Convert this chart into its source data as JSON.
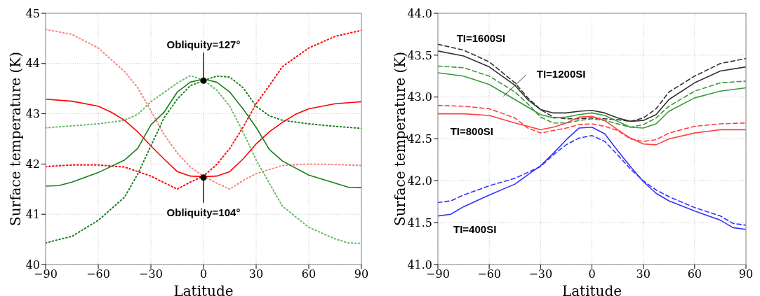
{
  "chart_data": [
    {
      "type": "line",
      "xlabel": "Latitude",
      "ylabel": "Surface temperature (K)",
      "xlim": [
        -90,
        90
      ],
      "xticks": [
        {
          "value": -90,
          "label": "−90"
        },
        {
          "value": -60,
          "label": "−60"
        },
        {
          "value": -30,
          "label": "−30"
        },
        0,
        30,
        60,
        90
      ],
      "ylim": [
        40,
        45
      ],
      "yticks": [
        40,
        41,
        42,
        43,
        44,
        45
      ],
      "grid": true,
      "annotations": [
        {
          "text": "Obliquity=127°",
          "x": 0,
          "y": 43.66
        },
        {
          "text": "Obliquity=104°",
          "x": 0,
          "y": 41.73
        }
      ],
      "series": [
        {
          "color": "#ff8080",
          "line_style": "dotted",
          "x": [
            -90,
            -75,
            -60,
            -45,
            -37.5,
            -30,
            -22.5,
            -15,
            -7.5,
            0,
            7.5,
            15,
            22.5,
            30,
            45,
            60,
            75,
            90
          ],
          "values": [
            44.68,
            44.58,
            44.31,
            43.84,
            43.52,
            43.06,
            42.59,
            42.22,
            41.94,
            41.76,
            41.62,
            41.5,
            41.67,
            41.81,
            41.97,
            42.0,
            41.99,
            41.97
          ]
        },
        {
          "color": "#ff0000",
          "line_style": "dotted",
          "x": [
            -90,
            -75,
            -60,
            -45,
            -30,
            -15,
            -7.5,
            0,
            7.5,
            15,
            22.5,
            30,
            37.5,
            45,
            60,
            75,
            90
          ],
          "values": [
            41.95,
            41.98,
            41.98,
            41.94,
            41.76,
            41.5,
            41.64,
            41.76,
            41.99,
            42.31,
            42.73,
            43.2,
            43.56,
            43.94,
            44.31,
            44.54,
            44.66
          ]
        },
        {
          "color": "#66bb66",
          "line_style": "dotted",
          "x": [
            -90,
            -60,
            -45,
            -37.5,
            -30,
            -15,
            -7.5,
            0,
            7.5,
            15,
            22.5,
            30,
            37.5,
            45,
            60,
            75,
            82.5,
            90
          ],
          "values": [
            42.72,
            42.8,
            42.87,
            42.99,
            43.24,
            43.61,
            43.76,
            43.67,
            43.47,
            43.15,
            42.64,
            42.08,
            41.62,
            41.16,
            40.74,
            40.51,
            40.43,
            40.42
          ]
        },
        {
          "color": "#1a7f1a",
          "line_style": "dotted",
          "x": [
            -90,
            -75,
            -60,
            -45,
            -37.5,
            -30,
            -22.5,
            -15,
            -7.5,
            0,
            7.5,
            15,
            22.5,
            30,
            37.5,
            45,
            60,
            75,
            90
          ],
          "values": [
            40.43,
            40.56,
            40.88,
            41.34,
            41.8,
            42.36,
            42.92,
            43.29,
            43.56,
            43.66,
            43.75,
            43.73,
            43.52,
            43.15,
            42.96,
            42.87,
            42.8,
            42.75,
            42.71
          ]
        },
        {
          "color": "#ff0000",
          "line_style": "solid",
          "x": [
            -90,
            -75,
            -60,
            -52.5,
            -45,
            -37.5,
            -30,
            -22.5,
            -15,
            -7.5,
            0,
            7.5,
            15,
            22.5,
            30,
            37.5,
            45,
            52.5,
            60,
            75,
            90
          ],
          "values": [
            43.29,
            43.25,
            43.15,
            43.03,
            42.87,
            42.64,
            42.36,
            42.1,
            41.85,
            41.76,
            41.75,
            41.76,
            41.85,
            42.1,
            42.4,
            42.64,
            42.83,
            42.99,
            43.1,
            43.2,
            43.24
          ]
        },
        {
          "color": "#1a7f1a",
          "line_style": "solid",
          "x": [
            -90,
            -82.5,
            -75,
            -60,
            -45,
            -37.5,
            -30,
            -22.5,
            -15,
            -7.5,
            0,
            7.5,
            15,
            22.5,
            30,
            37.5,
            45,
            60,
            75,
            82.5,
            90
          ],
          "values": [
            41.56,
            41.57,
            41.64,
            41.83,
            42.08,
            42.31,
            42.78,
            43.03,
            43.43,
            43.63,
            43.69,
            43.63,
            43.43,
            43.1,
            42.73,
            42.29,
            42.06,
            41.78,
            41.62,
            41.54,
            41.53
          ]
        }
      ]
    },
    {
      "type": "line",
      "xlabel": "Latitude",
      "ylabel": "Surface temperature (K)",
      "xlim": [
        -90,
        90
      ],
      "xticks": [
        {
          "value": -90,
          "label": "−90"
        },
        {
          "value": -60,
          "label": "−60"
        },
        {
          "value": -30,
          "label": "−30"
        },
        0,
        30,
        60,
        90
      ],
      "ylim": [
        41,
        44
      ],
      "yticks": [
        {
          "value": 41,
          "label": "41.0"
        },
        41.5,
        {
          "value": 42,
          "label": "42.0"
        },
        42.5,
        {
          "value": 43,
          "label": "43.0"
        },
        43.5,
        {
          "value": 44,
          "label": "44.0"
        }
      ],
      "grid": true,
      "annotations": [
        "TI=1600SI",
        "TI=1200SI",
        "TI=800SI",
        "TI=400SI"
      ],
      "series": [
        {
          "color": "#333333",
          "line_style": "solid",
          "x": [
            -90,
            -75,
            -60,
            -45,
            -37.5,
            -30,
            -22.5,
            -15,
            -7.5,
            0,
            7.5,
            15,
            22.5,
            30,
            37.5,
            45,
            60,
            75,
            90
          ],
          "values": [
            43.55,
            43.49,
            43.36,
            43.14,
            42.97,
            42.85,
            42.81,
            42.81,
            42.83,
            42.84,
            42.81,
            42.75,
            42.71,
            42.72,
            42.79,
            42.97,
            43.17,
            43.31,
            43.36
          ]
        },
        {
          "color": "#333333",
          "line_style": "dashed",
          "x": [
            -90,
            -75,
            -60,
            -45,
            -37.5,
            -30,
            -22.5,
            -15,
            -7.5,
            0,
            7.5,
            15,
            22.5,
            30,
            37.5,
            45,
            60,
            75,
            90
          ],
          "values": [
            43.63,
            43.56,
            43.42,
            43.17,
            42.99,
            42.85,
            42.76,
            42.74,
            42.74,
            42.75,
            42.74,
            42.73,
            42.71,
            42.75,
            42.86,
            43.06,
            43.25,
            43.4,
            43.46
          ]
        },
        {
          "color": "#3a9a3a",
          "line_style": "solid",
          "x": [
            -90,
            -75,
            -60,
            -45,
            -37.5,
            -30,
            -22.5,
            -15,
            -7.5,
            0,
            7.5,
            15,
            22.5,
            30,
            37.5,
            45,
            60,
            75,
            90
          ],
          "values": [
            43.29,
            43.25,
            43.15,
            42.97,
            42.88,
            42.79,
            42.75,
            42.76,
            42.79,
            42.81,
            42.78,
            42.71,
            42.64,
            42.63,
            42.68,
            42.83,
            42.99,
            43.07,
            43.11
          ]
        },
        {
          "color": "#3a9a3a",
          "line_style": "dashed",
          "x": [
            -90,
            -75,
            -60,
            -45,
            -37.5,
            -30,
            -22.5,
            -15,
            -7.5,
            0,
            7.5,
            15,
            22.5,
            30,
            37.5,
            45,
            60,
            75,
            90
          ],
          "values": [
            43.37,
            43.35,
            43.25,
            43.06,
            42.92,
            42.76,
            42.69,
            42.69,
            42.72,
            42.74,
            42.72,
            42.68,
            42.64,
            42.67,
            42.75,
            42.89,
            43.07,
            43.17,
            43.19
          ]
        },
        {
          "color": "#ff4040",
          "line_style": "solid",
          "x": [
            -90,
            -75,
            -60,
            -45,
            -37.5,
            -30,
            -22.5,
            -15,
            -7.5,
            0,
            7.5,
            15,
            22.5,
            30,
            37.5,
            45,
            60,
            75,
            90
          ],
          "values": [
            42.8,
            42.8,
            42.78,
            42.69,
            42.65,
            42.61,
            42.64,
            42.69,
            42.76,
            42.77,
            42.72,
            42.61,
            42.51,
            42.44,
            42.43,
            42.5,
            42.57,
            42.61,
            42.61
          ]
        },
        {
          "color": "#ff4040",
          "line_style": "dashed",
          "x": [
            -90,
            -75,
            -60,
            -45,
            -37.5,
            -30,
            -22.5,
            -15,
            -7.5,
            0,
            7.5,
            15,
            22.5,
            30,
            37.5,
            45,
            60,
            75,
            90
          ],
          "values": [
            42.9,
            42.89,
            42.86,
            42.75,
            42.63,
            42.57,
            42.6,
            42.63,
            42.67,
            42.68,
            42.65,
            42.6,
            42.5,
            42.47,
            42.49,
            42.57,
            42.65,
            42.68,
            42.69
          ]
        },
        {
          "color": "#3333ff",
          "line_style": "solid",
          "x": [
            -90,
            -82.5,
            -75,
            -60,
            -45,
            -37.5,
            -30,
            -22.5,
            -15,
            -7.5,
            0,
            7.5,
            15,
            22.5,
            30,
            37.5,
            45,
            60,
            75,
            82.5,
            90
          ],
          "values": [
            41.58,
            41.6,
            41.69,
            41.83,
            41.96,
            42.07,
            42.18,
            42.33,
            42.49,
            42.63,
            42.64,
            42.56,
            42.36,
            42.17,
            41.99,
            41.85,
            41.76,
            41.64,
            41.53,
            41.44,
            41.42
          ]
        },
        {
          "color": "#3333ff",
          "line_style": "dashed",
          "x": [
            -90,
            -82.5,
            -75,
            -60,
            -45,
            -37.5,
            -30,
            -22.5,
            -15,
            -7.5,
            0,
            7.5,
            15,
            22.5,
            30,
            37.5,
            45,
            60,
            75,
            82.5,
            90
          ],
          "values": [
            41.74,
            41.76,
            41.83,
            41.94,
            42.03,
            42.1,
            42.17,
            42.31,
            42.43,
            42.51,
            42.54,
            42.47,
            42.31,
            42.14,
            42.0,
            41.89,
            41.81,
            41.68,
            41.58,
            41.49,
            41.47
          ]
        }
      ]
    }
  ]
}
